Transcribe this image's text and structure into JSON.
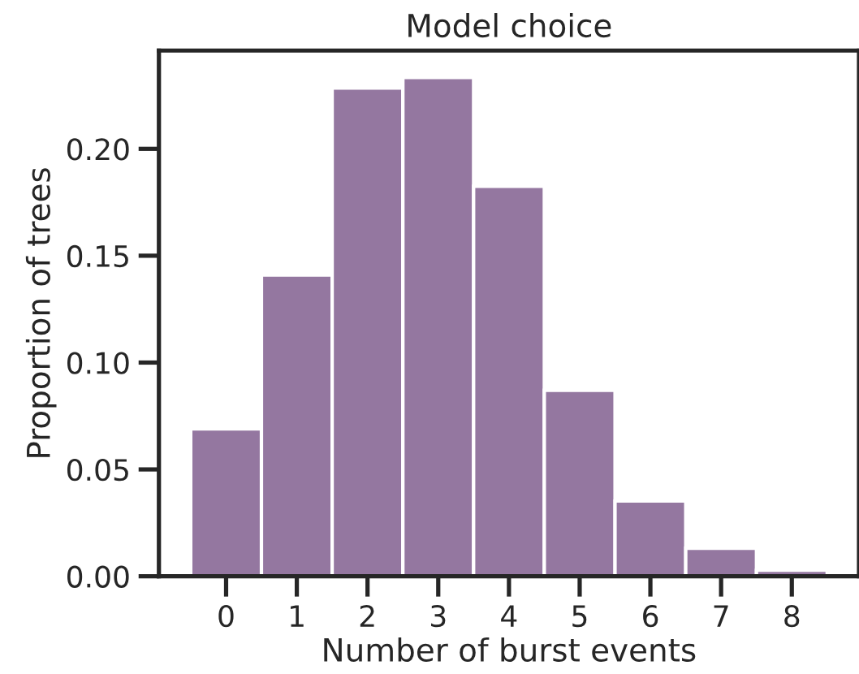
{
  "chart_data": {
    "type": "histogram",
    "title": "Model choice",
    "xlabel": "Number of burst events",
    "ylabel": "Proportion of trees",
    "bins": [
      -0.5,
      0.5,
      1.5,
      2.5,
      3.5,
      4.5,
      5.5,
      6.5,
      7.5,
      8.5
    ],
    "values": [
      0.069,
      0.141,
      0.2285,
      0.2334,
      0.1825,
      0.087,
      0.0352,
      0.0131,
      0.0028
    ],
    "color": "#9477a0",
    "xlim": [
      -0.95,
      8.95
    ],
    "xticks": [
      0,
      1,
      2,
      3,
      4,
      5,
      6,
      7,
      8
    ],
    "ylim": [
      0,
      0.246
    ],
    "yticks": [
      {
        "value": 0,
        "label": "0.00"
      },
      {
        "value": 0.05,
        "label": "0.05"
      },
      {
        "value": 0.1,
        "label": "0.10"
      },
      {
        "value": 0.15,
        "label": "0.15"
      },
      {
        "value": 0.2,
        "label": "0.20"
      }
    ],
    "grid": false
  }
}
